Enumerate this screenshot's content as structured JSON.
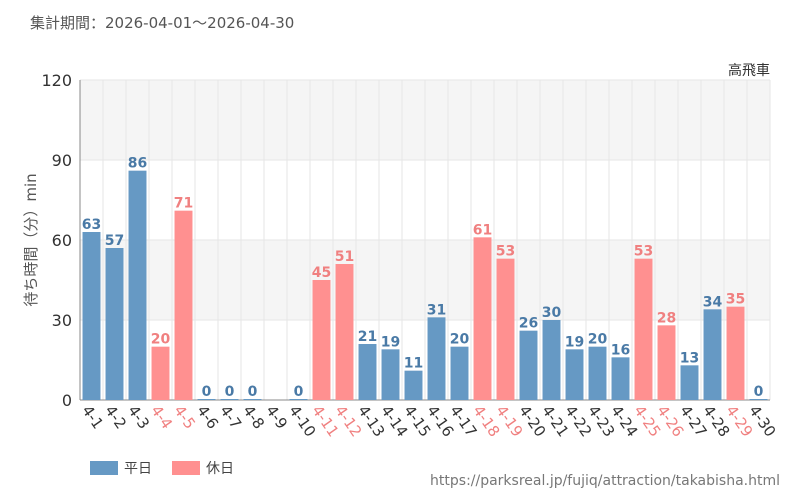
{
  "period_text": "集計期間：2026-04-01～2026-04-30",
  "source_url": "https://parksreal.jp/fujiq/attraction/takabisha.html",
  "legend": {
    "weekday": "平日",
    "holiday": "休日"
  },
  "colors": {
    "weekday": "#6699c4",
    "holiday": "#ff9090",
    "weekday_label": "#4a7aa6",
    "holiday_label": "#f08080",
    "band": "#f5f5f5",
    "grid": "#e6e6e6",
    "axis_text": "#333333"
  },
  "chart_data": {
    "type": "bar",
    "title": "高飛車",
    "ylabel": "待ち時間（分）min",
    "xlabel": "",
    "ylim": [
      0,
      120
    ],
    "yticks": [
      0,
      30,
      60,
      90,
      120
    ],
    "categories": [
      "4-1",
      "4-2",
      "4-3",
      "4-4",
      "4-5",
      "4-6",
      "4-7",
      "4-8",
      "4-9",
      "4-10",
      "4-11",
      "4-12",
      "4-13",
      "4-14",
      "4-15",
      "4-16",
      "4-17",
      "4-18",
      "4-19",
      "4-20",
      "4-21",
      "4-22",
      "4-23",
      "4-24",
      "4-25",
      "4-26",
      "4-27",
      "4-28",
      "4-29",
      "4-30"
    ],
    "values": [
      63,
      57,
      86,
      20,
      71,
      0,
      0,
      0,
      null,
      0,
      45,
      51,
      21,
      19,
      11,
      31,
      20,
      61,
      53,
      26,
      30,
      19,
      20,
      16,
      53,
      28,
      13,
      34,
      35,
      0
    ],
    "day_type": [
      "weekday",
      "weekday",
      "weekday",
      "holiday",
      "holiday",
      "weekday",
      "weekday",
      "weekday",
      "weekday",
      "weekday",
      "holiday",
      "holiday",
      "weekday",
      "weekday",
      "weekday",
      "weekday",
      "weekday",
      "holiday",
      "holiday",
      "weekday",
      "weekday",
      "weekday",
      "weekday",
      "weekday",
      "holiday",
      "holiday",
      "weekday",
      "weekday",
      "holiday",
      "weekday"
    ],
    "grid": true,
    "legend_position": "bottom-left"
  }
}
